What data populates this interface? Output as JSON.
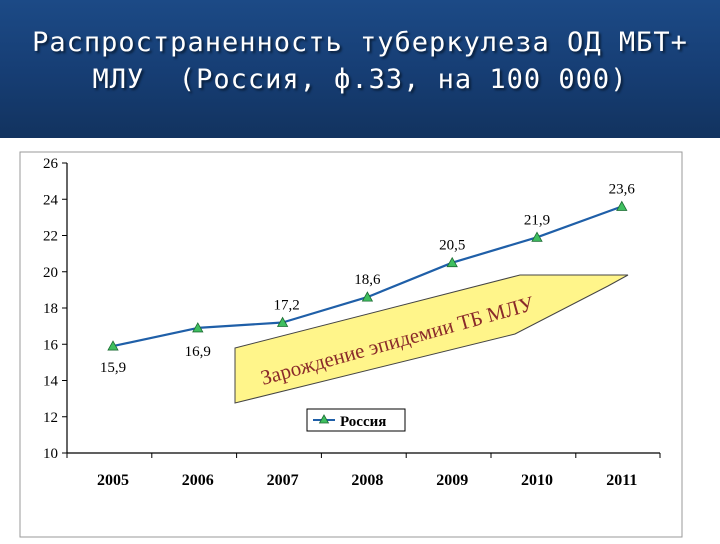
{
  "header": {
    "title_line1": "Распространенность туберкулеза ОД МБТ+",
    "title_line2": "МЛУ  (Россия, ф.33, на 100 000)",
    "background_color": "#173f78"
  },
  "chart_data": {
    "type": "line",
    "title": "Распространенность туберкулеза ОД МБТ+ МЛУ (Россия, ф.33, на 100 000)",
    "categories": [
      "2005",
      "2006",
      "2007",
      "2008",
      "2009",
      "2010",
      "2011"
    ],
    "series": [
      {
        "name": "Россия",
        "values": [
          15.9,
          16.9,
          17.2,
          18.6,
          20.5,
          21.9,
          23.6
        ],
        "labels": [
          "15,9",
          "16,9",
          "17,2",
          "18,6",
          "20,5",
          "21,9",
          "23,6"
        ],
        "color": "#1f5fa8",
        "marker_color": "#3fbf5f"
      }
    ],
    "yticks": [
      "10",
      "12",
      "14",
      "16",
      "18",
      "20",
      "22",
      "24",
      "26"
    ],
    "ylim": [
      10,
      26
    ],
    "xlabel": "",
    "ylabel": "",
    "grid": false,
    "legend": {
      "placement": "bottom-center"
    },
    "annotation": {
      "text": "Зарождение эпидемии ТБ МЛУ",
      "fill": "#fff58a",
      "shape": "arrow"
    }
  }
}
